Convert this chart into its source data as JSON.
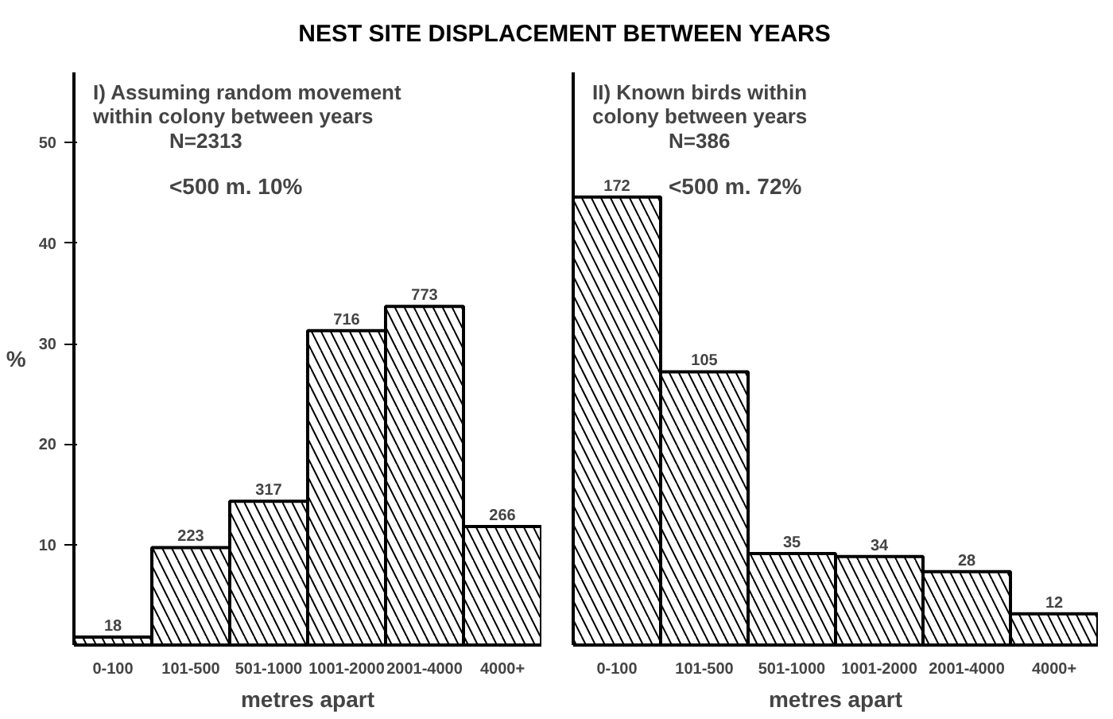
{
  "chart_data": [
    {
      "type": "bar",
      "title": "NEST SITE DISPLACEMENT BETWEEN YEARS",
      "subtitle": "I) Assuming random movement within colony between years",
      "xlabel": "metres apart",
      "ylabel": "%",
      "annotations": [
        "N=2313",
        "<500 m. 10%",
        {
          "text": "18",
          "x": "0-100",
          "y": 0.8
        },
        {
          "text": "223",
          "x": "101-500",
          "y": 9.7
        },
        {
          "text": "317",
          "x": "501-1000",
          "y": 14.3
        },
        {
          "text": "716",
          "x": "1001-2000",
          "y": 31.3
        },
        {
          "text": "773",
          "x": "2001-4000",
          "y": 33.7
        },
        {
          "text": "266",
          "x": "4000+",
          "y": 11.8
        }
      ],
      "categories": [
        "0-100",
        "101-500",
        "501-1000",
        "1001-2000",
        "2001-4000",
        "4000+"
      ],
      "series": [
        {
          "color": "#000000",
          "values": [
            0.8,
            9.7,
            14.3,
            31.3,
            33.7,
            11.8
          ]
        }
      ],
      "ylim": [
        0,
        57
      ],
      "yticks": [
        10,
        20,
        30,
        40,
        50
      ],
      "grid": false
    },
    {
      "type": "bar",
      "subtitle": "II) Known birds within colony between years",
      "xlabel": "metres apart",
      "annotations": [
        "N=386",
        "<500 m. 72%",
        {
          "text": "172",
          "x": "0-100",
          "y": 44.6
        },
        {
          "text": "105",
          "x": "101-500",
          "y": 27.2
        },
        {
          "text": "35",
          "x": "501-1000",
          "y": 9.1
        },
        {
          "text": "34",
          "x": "1001-2000",
          "y": 8.8
        },
        {
          "text": "28",
          "x": "2001-4000",
          "y": 7.3
        },
        {
          "text": "12",
          "x": "4000+",
          "y": 3.1
        }
      ],
      "categories": [
        "0-100",
        "101-500",
        "501-1000",
        "1001-2000",
        "2001-4000",
        "4000+"
      ],
      "series": [
        {
          "color": "#000000",
          "values": [
            44.6,
            27.2,
            9.1,
            8.8,
            7.3,
            3.1
          ]
        }
      ],
      "ylim": [
        0,
        57
      ],
      "yticks": [
        10,
        20,
        30,
        40,
        50
      ],
      "tick_labels": "x",
      "grid": false
    }
  ]
}
